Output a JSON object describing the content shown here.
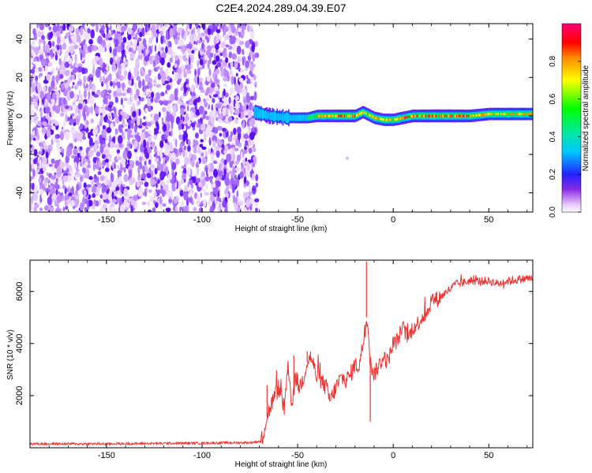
{
  "title": "C2E4.2024.289.04.39.E07",
  "chart_data": [
    {
      "type": "heatmap",
      "xlabel": "Height of straight line (km)",
      "ylabel": "Frequency (Hz)",
      "xlim": [
        -190,
        73
      ],
      "ylim": [
        -50,
        48
      ],
      "xticks": [
        -150,
        -100,
        -50,
        0,
        50
      ],
      "yticks": [
        -40,
        -20,
        0,
        20,
        40
      ],
      "colorbar": {
        "label": "Normalized spectral amplitude",
        "range": [
          0.0,
          1.0
        ],
        "ticks": [
          "0.0",
          "0.2",
          "0.4",
          "0.6",
          "0.8"
        ],
        "colormap": "rainbow (white at 0, violet, blue, cyan, green, yellow, orange, red, magenta at 1)"
      },
      "noise_region": {
        "x": [
          -190,
          -73
        ],
        "frequency": [
          -50,
          48
        ],
        "amplitude": [
          0.0,
          0.2
        ]
      },
      "signal_band": {
        "x": [
          -73,
          -65,
          -55,
          -45,
          -40,
          -30,
          -20,
          -16,
          -14,
          -10,
          -5,
          0,
          5,
          10,
          20,
          30,
          40,
          50,
          60,
          73
        ],
        "center_hz": [
          2,
          0,
          -1,
          -1,
          0,
          0,
          0,
          2,
          1,
          -1,
          -2,
          -2,
          -1,
          0,
          0,
          0,
          0,
          1,
          1,
          1
        ],
        "peak_amplitude": [
          0.3,
          0.5,
          0.55,
          0.6,
          0.85,
          0.9,
          0.9,
          0.85,
          0.9,
          0.85,
          0.85,
          0.85,
          0.9,
          0.9,
          0.95,
          0.95,
          0.9,
          0.85,
          0.85,
          0.85
        ]
      }
    },
    {
      "type": "line",
      "xlabel": "Height of straight line (km)",
      "ylabel": "SNR (10 * v/v)",
      "xlim": [
        -190,
        73
      ],
      "ylim": [
        0,
        7200
      ],
      "xticks": [
        -150,
        -100,
        -50,
        0,
        50
      ],
      "yticks": [
        2000,
        4000,
        6000
      ],
      "series": [
        {
          "color": "#ee3333",
          "x": [
            -190,
            -150,
            -100,
            -75,
            -69,
            -66,
            -63,
            -60,
            -57,
            -55,
            -53,
            -51,
            -49,
            -47,
            -45,
            -43,
            -40,
            -37,
            -35,
            -33,
            -30,
            -27,
            -25,
            -23,
            -20,
            -18,
            -16,
            -15,
            -14,
            -13,
            -12,
            -10,
            -8,
            -5,
            -3,
            0,
            2,
            5,
            8,
            10,
            12,
            15,
            18,
            20,
            23,
            25,
            28,
            30,
            33,
            35,
            40,
            45,
            50,
            55,
            60,
            65,
            70,
            73
          ],
          "y": [
            150,
            150,
            180,
            200,
            250,
            1200,
            1800,
            2300,
            1500,
            3000,
            1700,
            2700,
            2300,
            2700,
            3300,
            3500,
            2700,
            2500,
            2300,
            1800,
            2300,
            2700,
            2600,
            2700,
            3200,
            3100,
            3900,
            4300,
            5000,
            4600,
            3300,
            2800,
            3100,
            3500,
            3300,
            4000,
            4100,
            4600,
            4200,
            4600,
            4700,
            5000,
            5200,
            5700,
            5700,
            5800,
            6000,
            6100,
            6300,
            6300,
            6400,
            6400,
            6400,
            6300,
            6400,
            6450,
            6500,
            6500
          ],
          "spikes": [
            {
              "x": -66,
              "y": 2400
            },
            {
              "x": -55,
              "y": 2800
            },
            {
              "x": -52,
              "y": 3550
            },
            {
              "x": -45,
              "y": 3700
            },
            {
              "x": -14,
              "y": 7150
            },
            {
              "x": -12,
              "y": 1000
            }
          ]
        }
      ]
    }
  ]
}
